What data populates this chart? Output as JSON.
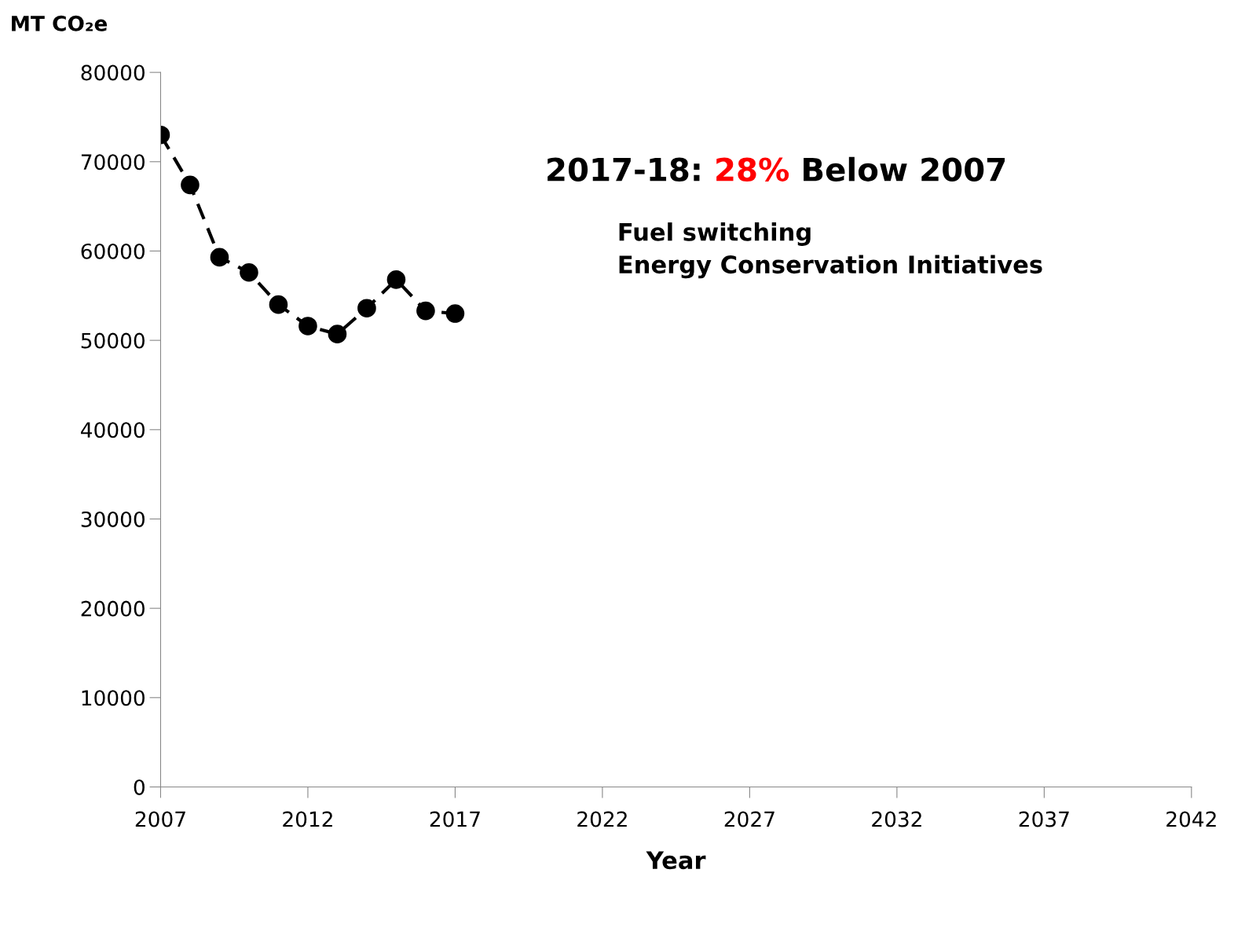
{
  "chart_data": {
    "type": "line",
    "title": "2017-18: 28% Below 2007",
    "xlabel": "Year",
    "ylabel": "MT CO₂e",
    "annotations": [
      "Fuel switching\nEnergy Conservation Initiatives"
    ],
    "x": [
      2007,
      2008,
      2009,
      2010,
      2011,
      2012,
      2013,
      2014,
      2015,
      2016,
      2017
    ],
    "series": [
      {
        "color": "#000000",
        "values": [
          73000,
          67400,
          59300,
          57600,
          54000,
          51600,
          50700,
          53600,
          56800,
          53300,
          53000
        ]
      }
    ],
    "xlim": [
      2007,
      2042
    ],
    "xticks": [
      2007,
      2012,
      2017,
      2022,
      2027,
      2032,
      2037,
      2042
    ],
    "ylim": [
      0,
      80000
    ],
    "yticks": [
      0,
      10000,
      20000,
      30000,
      40000,
      50000,
      60000,
      70000,
      80000
    ],
    "grid": false,
    "legend": false,
    "marker": "circle",
    "line_style": "dashed"
  }
}
